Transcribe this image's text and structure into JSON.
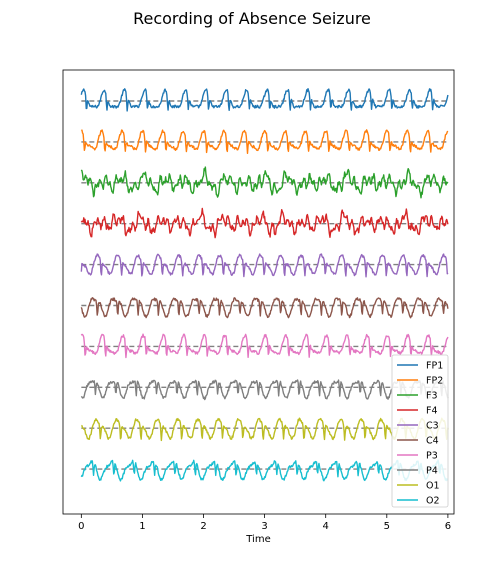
{
  "chart_data": {
    "type": "line",
    "title": "Recording of Absence Seizure",
    "xlabel": "Time",
    "ylabel": "",
    "xlim": [
      -0.3,
      6.1
    ],
    "xticks": [
      0,
      1,
      2,
      3,
      4,
      5,
      6
    ],
    "grid": false,
    "legend_position": "lower-right",
    "baselines": "dashed gray line at each channel's offset",
    "x_range": [
      0,
      6
    ],
    "series": [
      {
        "name": "FP1",
        "color": "#1f77b4",
        "offset": 0,
        "style": "spike-wave",
        "phase": 0.0
      },
      {
        "name": "FP2",
        "color": "#ff7f0e",
        "offset": -1,
        "style": "spike-wave",
        "phase": 0.6
      },
      {
        "name": "F3",
        "color": "#2ca02c",
        "offset": -2,
        "style": "irregular",
        "phase": 1.1
      },
      {
        "name": "F4",
        "color": "#d62728",
        "offset": -3,
        "style": "irregular",
        "phase": 2.3
      },
      {
        "name": "C3",
        "color": "#9467bd",
        "offset": -4,
        "style": "spike-wave",
        "phase": 1.7
      },
      {
        "name": "C4",
        "color": "#8c564b",
        "offset": -5,
        "style": "spike-wave",
        "phase": 2.9
      },
      {
        "name": "P3",
        "color": "#e377c2",
        "offset": -6,
        "style": "spike-wave",
        "phase": 0.4
      },
      {
        "name": "P4",
        "color": "#7f7f7f",
        "offset": -7,
        "style": "spike-wave",
        "phase": 3.5
      },
      {
        "name": "O1",
        "color": "#bcbd22",
        "offset": -8,
        "style": "spike-wave",
        "phase": 2.0
      },
      {
        "name": "O2",
        "color": "#17becf",
        "offset": -9,
        "style": "spike-wave",
        "phase": 4.1
      }
    ]
  }
}
